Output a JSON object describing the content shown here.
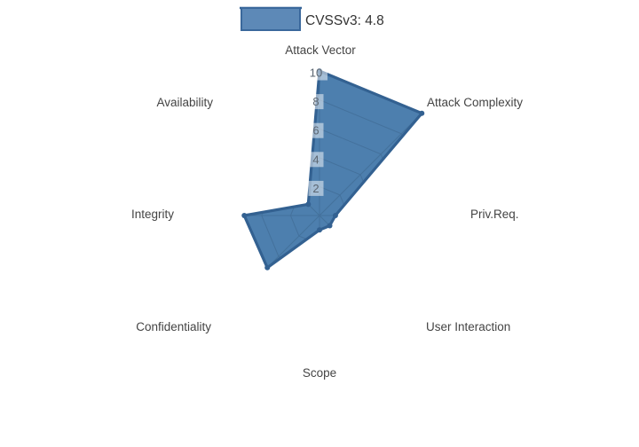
{
  "legend": {
    "label": "CVSSv3: 4.8"
  },
  "colors": {
    "fill": "#4d7fae",
    "line": "#336191",
    "grid": "#44719c",
    "marker": "#336191",
    "axis_label": "#444444",
    "tick_label": "#5b6570",
    "tick_bg": "rgba(255,255,255,0.5)",
    "legend_swatch_fill": "#5d89b7",
    "legend_swatch_border": "#3a689c",
    "legend_swatch_topline": "#2f5f92",
    "legend_text": "#333333",
    "background": "#ffffff"
  },
  "chart_data": {
    "type": "radar",
    "title": "CVSSv3: 4.8",
    "categories": [
      "Attack Vector",
      "Attack Complexity",
      "Priv.Req.",
      "User Interaction",
      "Scope",
      "Confidentiality",
      "Integrity",
      "Availability"
    ],
    "series": [
      {
        "name": "CVSSv3: 4.8",
        "values": [
          10,
          10,
          1.1,
          1.0,
          1.0,
          5.1,
          5.2,
          1.1
        ]
      }
    ],
    "ticks": [
      2,
      4,
      6,
      8,
      10
    ],
    "rmin": 0,
    "rmax": 10,
    "legend_position": "top-center",
    "grid_visibility": "grid lines visible only inside filled polygon",
    "axis_start": "top, clockwise"
  }
}
